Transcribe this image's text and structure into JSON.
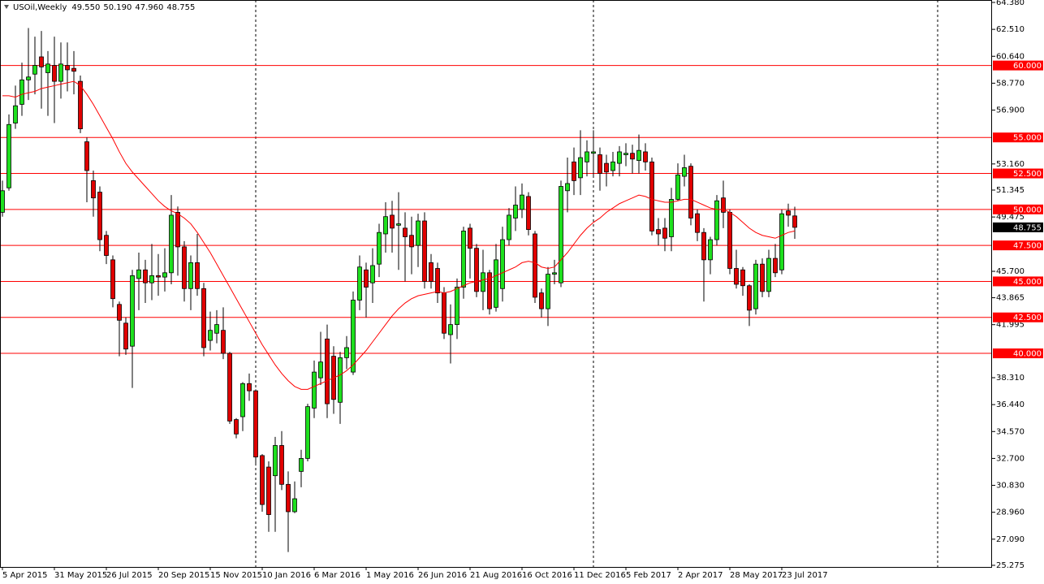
{
  "chart_data": {
    "type": "candlestick",
    "title": "USOil,Weekly",
    "ohlc_labels": [
      "49.550",
      "50.190",
      "47.960",
      "48.755"
    ],
    "categories": [
      "5 Apr 2015",
      null,
      null,
      null,
      null,
      null,
      null,
      null,
      "31 May 2015",
      null,
      null,
      null,
      null,
      null,
      null,
      null,
      "26 Jul 2015",
      null,
      null,
      null,
      null,
      null,
      null,
      null,
      "20 Sep 2015",
      null,
      null,
      null,
      null,
      null,
      null,
      null,
      "15 Nov 2015",
      null,
      null,
      null,
      null,
      null,
      null,
      null,
      "10 Jan 2016",
      null,
      null,
      null,
      null,
      null,
      null,
      null,
      "6 Mar 2016",
      null,
      null,
      null,
      null,
      null,
      null,
      null,
      "1 May 2016",
      null,
      null,
      null,
      null,
      null,
      null,
      null,
      "26 Jun 2016",
      null,
      null,
      null,
      null,
      null,
      null,
      null,
      "21 Aug 2016",
      null,
      null,
      null,
      null,
      null,
      null,
      null,
      "16 Oct 2016",
      null,
      null,
      null,
      null,
      null,
      null,
      null,
      "11 Dec 2016",
      null,
      null,
      null,
      null,
      null,
      null,
      null,
      "5 Feb 2017",
      null,
      null,
      null,
      null,
      null,
      null,
      null,
      "2 Apr 2017",
      null,
      null,
      null,
      null,
      null,
      null,
      null,
      "28 May 2017",
      null,
      null,
      null,
      null,
      null,
      null,
      null,
      "23 Jul 2017",
      null,
      null
    ],
    "open": [
      49.8,
      51.5,
      56.0,
      57.3,
      59.0,
      59.4,
      60.6,
      59.5,
      60.0,
      58.9,
      60.0,
      59.8,
      58.9,
      54.7,
      52.0,
      51.2,
      48.2,
      46.5,
      43.4,
      42.1,
      40.5,
      45.2,
      45.8,
      44.9,
      45.4,
      45.3,
      45.6,
      49.8,
      47.4,
      44.5,
      46.3,
      44.5,
      40.9,
      41.4,
      41.6,
      40.0,
      35.4,
      35.6,
      37.9,
      37.4,
      32.9,
      32.1,
      31.5,
      33.6,
      30.9,
      29.0,
      31.8,
      32.7,
      36.2,
      38.3,
      41.0,
      39.8,
      36.6,
      39.7,
      38.7,
      43.7,
      45.8,
      44.9,
      46.2,
      48.3,
      49.6,
      48.9,
      48.7,
      48.2,
      47.5,
      49.2,
      46.3,
      45.9,
      44.2,
      41.3,
      42.0,
      44.6,
      48.7,
      47.3,
      44.3,
      45.6,
      43.2,
      44.5,
      47.9,
      49.4,
      50.0,
      50.9,
      48.3,
      44.2,
      43.1,
      45.5,
      44.9,
      51.3,
      53.3,
      52.2,
      53.3,
      53.9,
      53.8,
      53.2,
      52.7,
      53.2,
      53.8,
      53.9,
      53.4,
      54.0,
      53.3,
      48.6,
      48.7,
      48.1,
      50.7,
      52.3,
      53.0,
      49.7,
      48.4,
      46.5,
      47.9,
      50.8,
      49.8,
      45.9,
      45.8,
      44.7,
      43.1,
      46.2,
      44.3,
      46.6,
      45.8,
      49.9,
      49.55
    ],
    "high": [
      52.0,
      56.6,
      58.6,
      60.2,
      62.6,
      62.0,
      62.4,
      61.0,
      62.0,
      61.6,
      61.6,
      61.0,
      59.3,
      55.0,
      52.7,
      51.6,
      48.5,
      46.8,
      43.6,
      42.5,
      45.8,
      47.0,
      46.5,
      47.6,
      46.9,
      47.3,
      51.0,
      50.2,
      47.8,
      46.8,
      48.3,
      44.9,
      42.9,
      43.0,
      43.2,
      40.1,
      35.5,
      38.0,
      38.6,
      37.5,
      33.0,
      32.5,
      34.2,
      34.6,
      31.8,
      31.1,
      33.3,
      36.5,
      39.5,
      41.5,
      42.0,
      40.5,
      40.1,
      41.2,
      44.3,
      46.8,
      46.3,
      47.3,
      49.0,
      50.5,
      50.6,
      51.2,
      49.8,
      49.5,
      49.7,
      49.8,
      46.9,
      46.3,
      44.6,
      43.4,
      45.2,
      48.8,
      49.0,
      47.6,
      47.2,
      45.8,
      47.6,
      48.8,
      50.1,
      51.6,
      51.8,
      51.2,
      48.5,
      44.5,
      46.0,
      46.5,
      52.0,
      53.6,
      54.3,
      55.5,
      54.8,
      55.5,
      54.3,
      53.8,
      54.0,
      54.4,
      54.6,
      54.5,
      55.2,
      54.6,
      53.6,
      49.4,
      49.4,
      51.5,
      53.2,
      53.8,
      53.2,
      50.0,
      48.7,
      48.1,
      51.0,
      52.0,
      50.0,
      47.2,
      46.0,
      44.8,
      46.5,
      46.6,
      47.2,
      47.6,
      50.0,
      50.4,
      50.19
    ],
    "low": [
      49.5,
      51.3,
      55.6,
      56.5,
      57.6,
      58.0,
      57.0,
      56.5,
      56.0,
      57.7,
      58.2,
      58.0,
      55.3,
      50.5,
      49.5,
      47.1,
      46.2,
      43.2,
      39.8,
      39.9,
      37.6,
      43.0,
      43.5,
      43.7,
      44.0,
      44.3,
      44.8,
      45.4,
      43.6,
      43.0,
      44.0,
      39.8,
      40.2,
      40.7,
      39.6,
      35.1,
      34.1,
      34.6,
      36.7,
      32.2,
      29.0,
      27.6,
      27.6,
      30.5,
      26.2,
      28.9,
      30.7,
      32.5,
      35.5,
      37.8,
      35.5,
      35.8,
      35.1,
      38.9,
      38.5,
      43.0,
      42.5,
      43.5,
      45.3,
      47.0,
      47.0,
      45.8,
      45.0,
      45.5,
      46.0,
      44.5,
      44.5,
      43.5,
      41.0,
      39.3,
      41.0,
      43.8,
      45.2,
      43.9,
      43.0,
      42.7,
      42.9,
      43.6,
      47.5,
      48.5,
      49.4,
      48.2,
      43.5,
      42.5,
      41.9,
      44.8,
      44.6,
      49.8,
      51.0,
      51.0,
      52.3,
      52.2,
      51.3,
      51.6,
      52.3,
      52.3,
      53.0,
      52.5,
      52.5,
      52.7,
      48.2,
      47.5,
      47.1,
      47.1,
      50.6,
      51.6,
      48.9,
      47.8,
      43.6,
      45.5,
      47.5,
      48.7,
      45.5,
      44.5,
      44.0,
      41.9,
      42.7,
      43.9,
      43.9,
      45.3,
      45.5,
      48.8,
      47.96
    ],
    "close": [
      51.3,
      55.9,
      57.2,
      59.0,
      59.2,
      60.0,
      59.9,
      60.1,
      58.9,
      60.1,
      59.7,
      59.6,
      55.6,
      52.7,
      50.8,
      47.9,
      46.8,
      43.8,
      42.3,
      40.3,
      45.4,
      45.8,
      44.9,
      45.4,
      45.3,
      45.6,
      49.6,
      47.4,
      44.5,
      46.3,
      44.5,
      40.4,
      41.6,
      42.0,
      40.0,
      35.3,
      34.4,
      37.9,
      37.4,
      32.8,
      29.5,
      28.8,
      33.6,
      30.9,
      29.0,
      29.9,
      32.7,
      36.3,
      38.7,
      39.4,
      36.5,
      36.8,
      39.7,
      40.4,
      43.7,
      46.0,
      44.6,
      46.1,
      48.4,
      49.5,
      48.7,
      49.0,
      48.1,
      47.4,
      49.2,
      45.0,
      45.0,
      44.2,
      41.4,
      42.0,
      44.6,
      48.5,
      47.3,
      44.3,
      45.6,
      43.1,
      46.5,
      47.9,
      49.6,
      50.3,
      51.0,
      48.6,
      43.9,
      43.1,
      45.5,
      45.6,
      51.6,
      51.8,
      52.0,
      53.6,
      54.0,
      54.0,
      52.5,
      52.6,
      53.3,
      54.0,
      53.9,
      53.5,
      54.1,
      53.3,
      48.5,
      48.3,
      48.0,
      50.7,
      52.4,
      52.9,
      49.4,
      48.4,
      46.5,
      47.9,
      50.6,
      49.8,
      45.9,
      44.8,
      44.7,
      43.0,
      46.2,
      44.3,
      46.6,
      45.6,
      49.7,
      49.6,
      48.755
    ],
    "up_color": "#1ee01e",
    "down_color": "#e00000",
    "ma": {
      "color": "#ff0000",
      "values": [
        57.9,
        57.9,
        57.8,
        58.0,
        58.1,
        58.2,
        58.4,
        58.5,
        58.6,
        58.7,
        58.8,
        58.9,
        58.6,
        58.0,
        57.3,
        56.5,
        55.7,
        54.9,
        54.0,
        53.2,
        52.6,
        52.1,
        51.6,
        51.1,
        50.6,
        50.2,
        49.9,
        49.7,
        49.4,
        49.0,
        48.4,
        47.7,
        47.0,
        46.2,
        45.4,
        44.6,
        43.8,
        43.0,
        42.2,
        41.4,
        40.6,
        39.9,
        39.2,
        38.6,
        38.1,
        37.7,
        37.5,
        37.5,
        37.7,
        37.9,
        38.1,
        38.3,
        38.5,
        38.8,
        39.2,
        39.7,
        40.2,
        40.8,
        41.4,
        42.0,
        42.6,
        43.1,
        43.5,
        43.8,
        44.0,
        44.1,
        44.2,
        44.3,
        44.2,
        44.3,
        44.5,
        44.7,
        44.9,
        45.0,
        45.1,
        45.2,
        45.4,
        45.6,
        45.8,
        46.0,
        46.3,
        46.4,
        46.3,
        46.0,
        45.9,
        46.0,
        46.5,
        47.0,
        47.6,
        48.2,
        48.7,
        49.1,
        49.4,
        49.8,
        50.1,
        50.4,
        50.6,
        50.8,
        51.0,
        50.9,
        50.7,
        50.6,
        50.5,
        50.5,
        50.6,
        50.7,
        50.7,
        50.5,
        50.3,
        50.1,
        50.0,
        50.0,
        49.8,
        49.5,
        49.1,
        48.7,
        48.4,
        48.2,
        48.1,
        48.0,
        48.2,
        48.4,
        48.5
      ]
    },
    "levels": [
      {
        "value": 60,
        "label": "60.000"
      },
      {
        "value": 55,
        "label": "55.000"
      },
      {
        "value": 52.5,
        "label": "52.500"
      },
      {
        "value": 50,
        "label": "50.000"
      },
      {
        "value": 47.5,
        "label": "47.500"
      },
      {
        "value": 45,
        "label": "45.000"
      },
      {
        "value": 42.5,
        "label": "42.500"
      },
      {
        "value": 40,
        "label": "40.000"
      }
    ],
    "level_color": "#ff0000",
    "ylim": [
      25.275,
      64.38
    ],
    "yticks": [
      {
        "value": 64.38,
        "label": "64.380"
      },
      {
        "value": 62.51,
        "label": "62.510"
      },
      {
        "value": 60.64,
        "label": "60.640"
      },
      {
        "value": 58.77,
        "label": "58.770"
      },
      {
        "value": 56.9,
        "label": "56.900"
      },
      {
        "value": 53.16,
        "label": "53.160"
      },
      {
        "value": 51.345,
        "label": "51.345"
      },
      {
        "value": 49.475,
        "label": "49.475"
      },
      {
        "value": 45.7,
        "label": "45.700"
      },
      {
        "value": 43.865,
        "label": "43.865"
      },
      {
        "value": 41.995,
        "label": "41.995"
      },
      {
        "value": 38.31,
        "label": "38.310"
      },
      {
        "value": 36.44,
        "label": "36.440"
      },
      {
        "value": 34.57,
        "label": "34.570"
      },
      {
        "value": 32.7,
        "label": "32.700"
      },
      {
        "value": 30.83,
        "label": "30.830"
      },
      {
        "value": 28.96,
        "label": "28.960"
      },
      {
        "value": 27.09,
        "label": "27.090"
      },
      {
        "value": 25.275,
        "label": "25.275"
      }
    ]
  }
}
